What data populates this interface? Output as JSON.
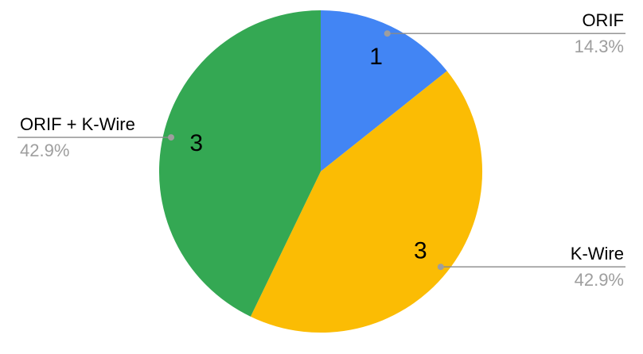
{
  "chart_data": {
    "type": "pie",
    "title": "",
    "categories": [
      "ORIF",
      "K-Wire",
      "ORIF + K-Wire"
    ],
    "values": [
      1,
      3,
      3
    ],
    "slices": [
      {
        "label": "ORIF",
        "value": 1,
        "value_text": "1",
        "pct": "14.3%",
        "color": "#4285f4"
      },
      {
        "label": "K-Wire",
        "value": 3,
        "value_text": "3",
        "pct": "42.9%",
        "color": "#fbbc04"
      },
      {
        "label": "ORIF + K-Wire",
        "value": 3,
        "value_text": "3",
        "pct": "42.9%",
        "color": "#34a853"
      }
    ],
    "start_angle_deg": 0,
    "direction": "clockwise",
    "legend_position": "none",
    "grid": false,
    "style": {
      "background": "#ffffff",
      "value_label_color": "#000000",
      "pct_label_color": "#9e9e9e",
      "leader_line_color": "#8a8a8a",
      "callout_dot_color": "#9e9e9e"
    }
  }
}
